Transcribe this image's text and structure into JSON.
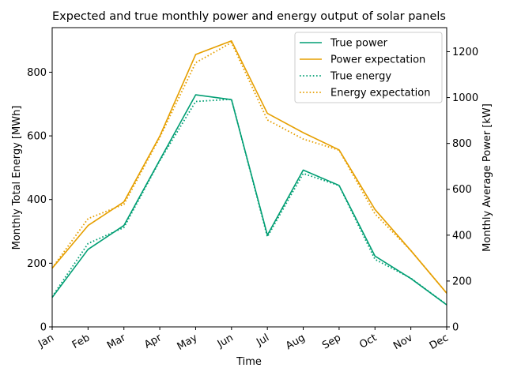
{
  "chart_data": {
    "type": "line",
    "title": "Expected and true monthly power and energy output of solar panels",
    "xlabel": "Time",
    "ylabel_left": "Monthly Total Energy [MWh]",
    "ylabel_right": "Monthly Average Power [kW]",
    "categories": [
      "Jan",
      "Feb",
      "Mar",
      "Apr",
      "May",
      "Jun",
      "Jul",
      "Aug",
      "Sep",
      "Oct",
      "Nov",
      "Dec"
    ],
    "ylim_left": [
      0,
      940
    ],
    "ylim_right": [
      0,
      1305
    ],
    "yticks_left": [
      0,
      200,
      400,
      600,
      800
    ],
    "yticks_right": [
      0,
      200,
      400,
      600,
      800,
      1000,
      1200
    ],
    "grid": false,
    "legend_position": "top-right",
    "series": [
      {
        "name": "True power",
        "axis": "right",
        "style": "solid",
        "color": "#009e73",
        "values": [
          128,
          338,
          442,
          728,
          1012,
          991,
          400,
          684,
          617,
          309,
          211,
          96
        ]
      },
      {
        "name": "Power expectation",
        "axis": "right",
        "style": "solid",
        "color": "#e69f00",
        "values": [
          256,
          442,
          545,
          832,
          1188,
          1247,
          931,
          847,
          772,
          512,
          333,
          147
        ]
      },
      {
        "name": "True energy",
        "axis": "left",
        "style": "dotted",
        "color": "#009e73",
        "values": [
          95,
          262,
          312,
          522,
          708,
          715,
          283,
          482,
          444,
          212,
          153,
          70
        ]
      },
      {
        "name": "Energy expectation",
        "axis": "left",
        "style": "dotted",
        "color": "#e69f00",
        "values": [
          185,
          340,
          385,
          595,
          830,
          893,
          650,
          590,
          555,
          355,
          240,
          106
        ]
      }
    ]
  }
}
